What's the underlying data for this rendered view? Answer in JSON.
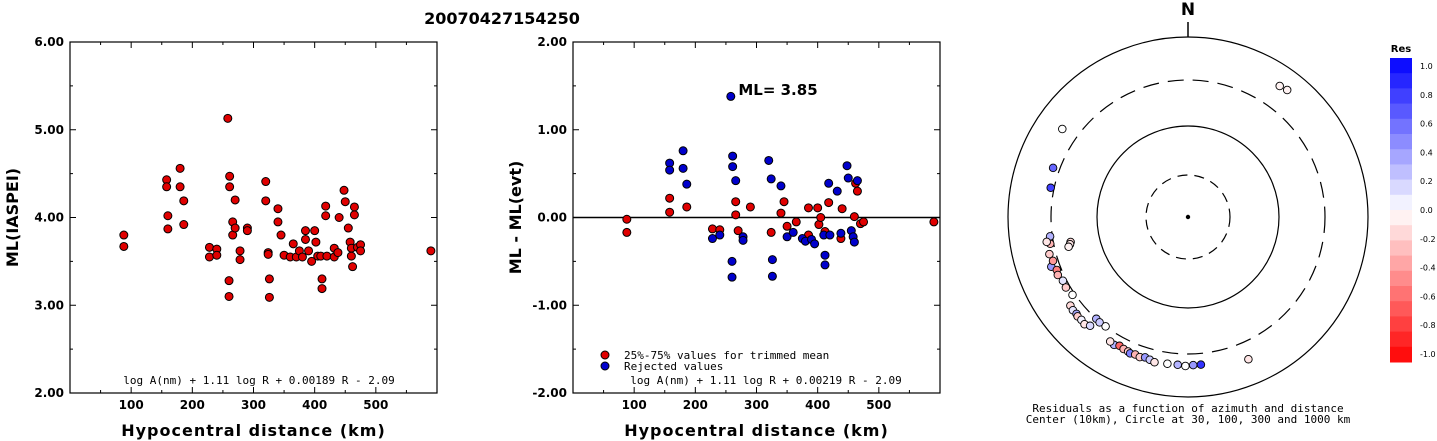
{
  "title": "20070427154250",
  "chart_data": [
    {
      "type": "scatter",
      "xlabel": "Hypocentral distance (km)",
      "ylabel": "ML(IASPEI)",
      "xlim": [
        0,
        600
      ],
      "ylim": [
        2.0,
        6.0
      ],
      "xticks": [
        "100",
        "200",
        "300",
        "400",
        "500"
      ],
      "yticks": [
        "2.00",
        "3.00",
        "4.00",
        "5.00",
        "6.00"
      ],
      "formula": "log A(nm) + 1.11 log R + 0.00189 R - 2.09",
      "marker_color": "#e00000",
      "points": [
        [
          88,
          3.8
        ],
        [
          88,
          3.67
        ],
        [
          158,
          4.43
        ],
        [
          158,
          4.35
        ],
        [
          160,
          4.02
        ],
        [
          160,
          3.87
        ],
        [
          180,
          4.56
        ],
        [
          180,
          4.35
        ],
        [
          186,
          4.19
        ],
        [
          186,
          3.92
        ],
        [
          228,
          3.66
        ],
        [
          228,
          3.55
        ],
        [
          240,
          3.64
        ],
        [
          240,
          3.57
        ],
        [
          258,
          5.13
        ],
        [
          261,
          4.47
        ],
        [
          261,
          4.35
        ],
        [
          266,
          3.95
        ],
        [
          266,
          3.8
        ],
        [
          270,
          4.2
        ],
        [
          270,
          3.88
        ],
        [
          260,
          3.28
        ],
        [
          260,
          3.1
        ],
        [
          278,
          3.62
        ],
        [
          278,
          3.52
        ],
        [
          290,
          3.88
        ],
        [
          290,
          3.85
        ],
        [
          320,
          4.41
        ],
        [
          320,
          4.19
        ],
        [
          324,
          3.6
        ],
        [
          324,
          3.58
        ],
        [
          326,
          3.3
        ],
        [
          326,
          3.09
        ],
        [
          340,
          4.1
        ],
        [
          340,
          3.95
        ],
        [
          345,
          3.8
        ],
        [
          350,
          3.57
        ],
        [
          360,
          3.55
        ],
        [
          365,
          3.7
        ],
        [
          370,
          3.55
        ],
        [
          375,
          3.62
        ],
        [
          380,
          3.55
        ],
        [
          385,
          3.85
        ],
        [
          385,
          3.75
        ],
        [
          390,
          3.62
        ],
        [
          395,
          3.5
        ],
        [
          400,
          3.85
        ],
        [
          402,
          3.72
        ],
        [
          405,
          3.56
        ],
        [
          410,
          3.56
        ],
        [
          412,
          3.3
        ],
        [
          412,
          3.19
        ],
        [
          418,
          4.13
        ],
        [
          418,
          4.02
        ],
        [
          420,
          3.56
        ],
        [
          432,
          3.65
        ],
        [
          432,
          3.55
        ],
        [
          438,
          3.6
        ],
        [
          440,
          4.0
        ],
        [
          448,
          4.31
        ],
        [
          450,
          4.18
        ],
        [
          455,
          3.88
        ],
        [
          458,
          3.72
        ],
        [
          460,
          3.65
        ],
        [
          460,
          3.56
        ],
        [
          462,
          3.44
        ],
        [
          465,
          4.12
        ],
        [
          465,
          4.03
        ],
        [
          470,
          3.66
        ],
        [
          475,
          3.69
        ],
        [
          475,
          3.62
        ],
        [
          590,
          3.62
        ]
      ]
    },
    {
      "type": "scatter",
      "xlabel": "Hypocentral distance (km)",
      "ylabel": "ML - ML(evt)",
      "xlim": [
        0,
        600
      ],
      "ylim": [
        -2.0,
        2.0
      ],
      "xticks": [
        "100",
        "200",
        "300",
        "400",
        "500"
      ],
      "yticks": [
        "-2.00",
        "-1.00",
        "0.00",
        "1.00",
        "2.00"
      ],
      "annotation": "ML= 3.85",
      "formula": "log A(nm) + 1.11 log R + 0.00219 R - 2.09",
      "legend": [
        {
          "name": "25%-75% values for trimmed mean",
          "color": "#e00000"
        },
        {
          "name": "Rejected values",
          "color": "#0000cc"
        }
      ],
      "series": [
        {
          "name": "25%-75% values for trimmed mean",
          "color": "#e00000",
          "points": [
            [
              88,
              -0.02
            ],
            [
              88,
              -0.17
            ],
            [
              158,
              0.22
            ],
            [
              158,
              0.06
            ],
            [
              186,
              0.12
            ],
            [
              228,
              -0.13
            ],
            [
              240,
              -0.14
            ],
            [
              266,
              0.18
            ],
            [
              266,
              0.03
            ],
            [
              270,
              -0.15
            ],
            [
              290,
              0.12
            ],
            [
              324,
              -0.17
            ],
            [
              340,
              0.05
            ],
            [
              345,
              0.18
            ],
            [
              350,
              -0.1
            ],
            [
              365,
              -0.05
            ],
            [
              385,
              0.11
            ],
            [
              385,
              -0.2
            ],
            [
              400,
              0.11
            ],
            [
              402,
              -0.08
            ],
            [
              405,
              0.0
            ],
            [
              412,
              -0.16
            ],
            [
              418,
              0.17
            ],
            [
              438,
              -0.24
            ],
            [
              440,
              0.1
            ],
            [
              460,
              0.01
            ],
            [
              462,
              0.39
            ],
            [
              465,
              0.3
            ],
            [
              470,
              -0.07
            ],
            [
              475,
              -0.05
            ],
            [
              590,
              -0.05
            ]
          ]
        },
        {
          "name": "Rejected values",
          "color": "#0000cc",
          "points": [
            [
              158,
              0.62
            ],
            [
              158,
              0.54
            ],
            [
              180,
              0.76
            ],
            [
              180,
              0.56
            ],
            [
              186,
              0.38
            ],
            [
              228,
              -0.24
            ],
            [
              240,
              -0.2
            ],
            [
              258,
              1.38
            ],
            [
              261,
              0.7
            ],
            [
              261,
              0.58
            ],
            [
              266,
              0.42
            ],
            [
              260,
              -0.5
            ],
            [
              260,
              -0.68
            ],
            [
              278,
              -0.22
            ],
            [
              278,
              -0.26
            ],
            [
              320,
              0.65
            ],
            [
              324,
              0.44
            ],
            [
              326,
              -0.48
            ],
            [
              326,
              -0.67
            ],
            [
              340,
              0.36
            ],
            [
              350,
              -0.22
            ],
            [
              360,
              -0.17
            ],
            [
              375,
              -0.24
            ],
            [
              380,
              -0.27
            ],
            [
              390,
              -0.25
            ],
            [
              395,
              -0.3
            ],
            [
              410,
              -0.2
            ],
            [
              412,
              -0.43
            ],
            [
              412,
              -0.54
            ],
            [
              418,
              0.39
            ],
            [
              420,
              -0.2
            ],
            [
              432,
              0.3
            ],
            [
              438,
              -0.18
            ],
            [
              448,
              0.59
            ],
            [
              450,
              0.45
            ],
            [
              455,
              -0.15
            ],
            [
              458,
              -0.22
            ],
            [
              460,
              -0.28
            ],
            [
              465,
              0.42
            ]
          ]
        }
      ]
    },
    {
      "type": "polar-scatter",
      "north_label": "N",
      "caption_line1": "Residuals as a function of azimuth and distance",
      "caption_line2": "Center (10km), Circle at 30, 100, 300 and 1000 km",
      "rings_km": [
        30,
        100,
        300,
        1000
      ],
      "colorbar": {
        "title": "Res",
        "labels": [
          "1.0",
          "0.8",
          "0.6",
          "0.4",
          "0.2",
          "0.0",
          "-0.2",
          "-0.4",
          "-0.6",
          "-0.8",
          "-1.0"
        ],
        "max_color": "#0000ff",
        "zero_color": "#ffffff",
        "min_color": "#ff0000"
      },
      "points": [
        {
          "az": 38,
          "dist": 590,
          "res": -0.05
        },
        {
          "az": 35,
          "dist": 570,
          "res": -0.05
        },
        {
          "az": 305,
          "dist": 475,
          "res": 0.0
        },
        {
          "az": 290,
          "dist": 360,
          "res": 0.6
        },
        {
          "az": 282,
          "dist": 330,
          "res": 0.75
        },
        {
          "az": 258,
          "dist": 200,
          "res": -0.15
        },
        {
          "az": 257,
          "dist": 205,
          "res": -0.1
        },
        {
          "az": 256,
          "dist": 215,
          "res": -0.05
        },
        {
          "az": 262,
          "dist": 320,
          "res": 0.3
        },
        {
          "az": 259,
          "dist": 330,
          "res": -0.3
        },
        {
          "az": 260,
          "dist": 360,
          "res": -0.1
        },
        {
          "az": 255,
          "dist": 360,
          "res": -0.2
        },
        {
          "az": 250,
          "dist": 380,
          "res": 0.4
        },
        {
          "az": 252,
          "dist": 345,
          "res": -0.4
        },
        {
          "az": 248,
          "dist": 340,
          "res": -0.5
        },
        {
          "az": 246,
          "dist": 350,
          "res": -0.3
        },
        {
          "az": 243,
          "dist": 330,
          "res": 0.1
        },
        {
          "az": 240,
          "dist": 335,
          "res": -0.2
        },
        {
          "az": 236,
          "dist": 320,
          "res": 0.0
        },
        {
          "az": 222,
          "dist": 300,
          "res": 0.3
        },
        {
          "az": 220,
          "dist": 305,
          "res": 0.2
        },
        {
          "az": 217,
          "dist": 300,
          "res": 0.0
        },
        {
          "az": 233,
          "dist": 400,
          "res": -0.15
        },
        {
          "az": 231,
          "dist": 410,
          "res": 0.1
        },
        {
          "az": 229,
          "dist": 405,
          "res": 0.35
        },
        {
          "az": 228,
          "dist": 415,
          "res": -0.2
        },
        {
          "az": 226,
          "dist": 410,
          "res": 0.05
        },
        {
          "az": 224,
          "dist": 420,
          "res": -0.1
        },
        {
          "az": 222,
          "dist": 390,
          "res": 0.15
        },
        {
          "az": 210,
          "dist": 405,
          "res": 0.3
        },
        {
          "az": 212,
          "dist": 395,
          "res": -0.1
        },
        {
          "az": 208,
          "dist": 385,
          "res": -0.6
        },
        {
          "az": 206,
          "dist": 395,
          "res": -0.3
        },
        {
          "az": 204,
          "dist": 400,
          "res": -0.2
        },
        {
          "az": 203,
          "dist": 410,
          "res": 0.5
        },
        {
          "az": 201,
          "dist": 400,
          "res": -0.3
        },
        {
          "az": 199,
          "dist": 410,
          "res": -0.2
        },
        {
          "az": 197,
          "dist": 395,
          "res": 0.4
        },
        {
          "az": 195,
          "dist": 405,
          "res": 0.2
        },
        {
          "az": 193,
          "dist": 420,
          "res": -0.1
        },
        {
          "az": 188,
          "dist": 410,
          "res": 0.0
        },
        {
          "az": 184,
          "dist": 410,
          "res": 0.3
        },
        {
          "az": 181,
          "dist": 420,
          "res": 0.0
        },
        {
          "az": 178,
          "dist": 410,
          "res": 0.4
        },
        {
          "az": 175,
          "dist": 410,
          "res": 0.8
        },
        {
          "az": 157,
          "dist": 490,
          "res": -0.1
        }
      ]
    }
  ]
}
